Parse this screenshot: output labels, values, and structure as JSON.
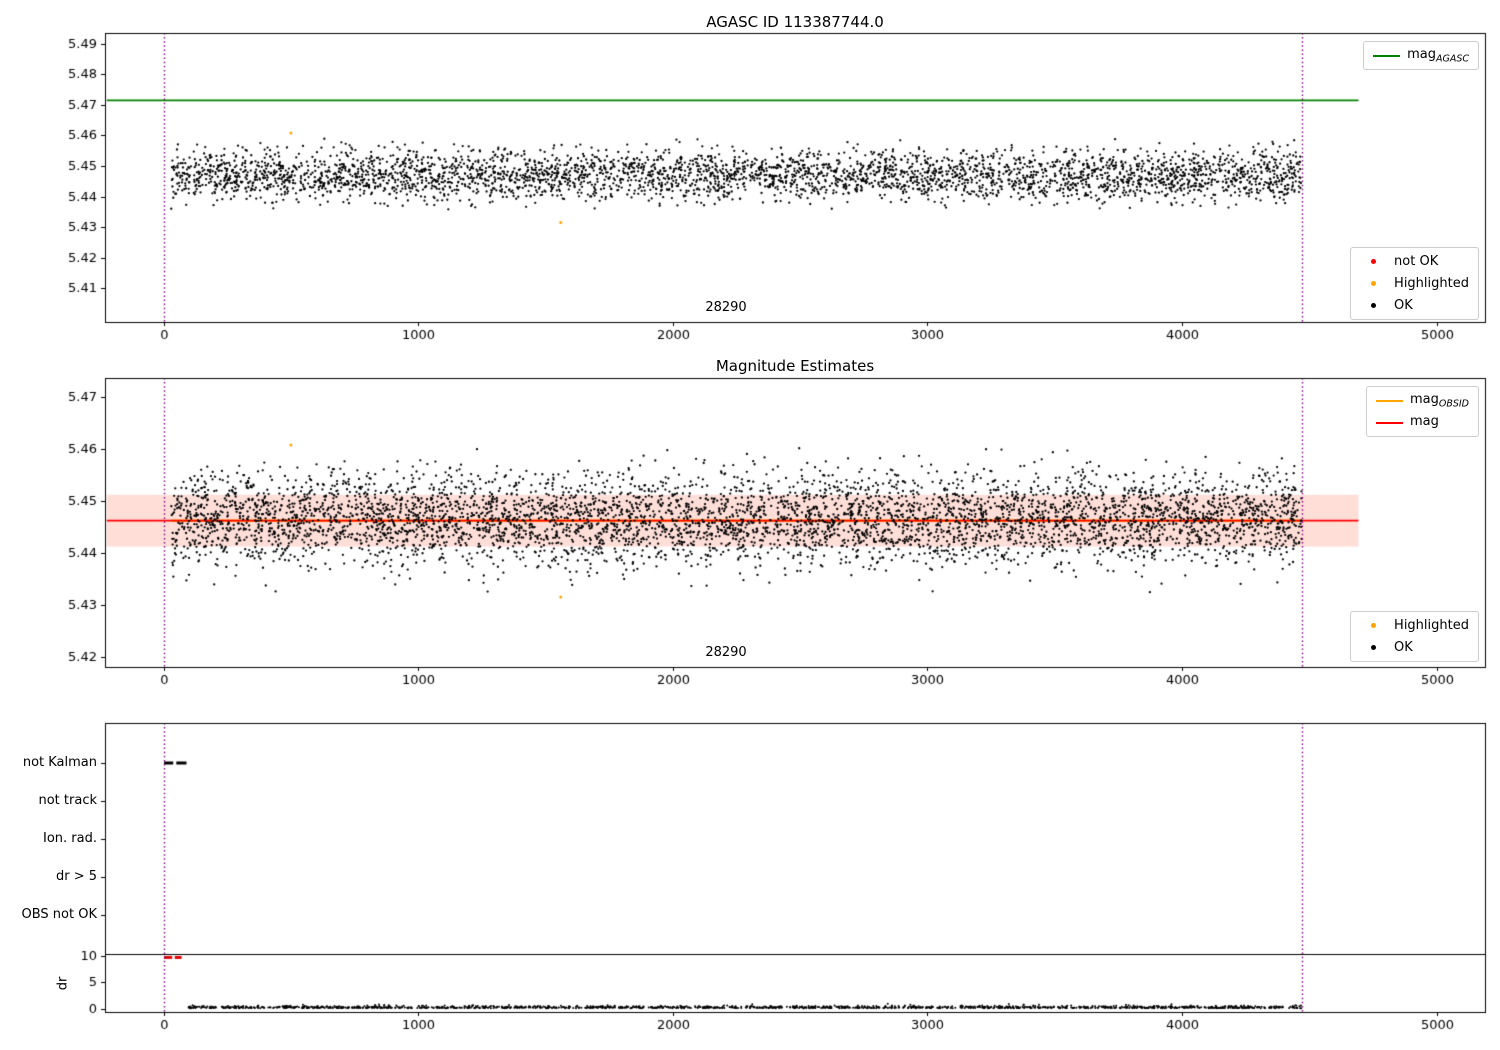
{
  "figure": {
    "background": "#ffffff"
  },
  "chart_data": [
    {
      "type": "scatter",
      "title": "AGASC ID 113387744.0",
      "annotation": {
        "text": "28290"
      },
      "xlim": [
        -230,
        5190
      ],
      "ylim": [
        5.399,
        5.4935
      ],
      "xticks": [
        0,
        1000,
        2000,
        3000,
        4000,
        5000
      ],
      "yticks": [
        5.41,
        5.42,
        5.43,
        5.44,
        5.45,
        5.46,
        5.47,
        5.48,
        5.49
      ],
      "hlines": [
        {
          "label_main": "mag",
          "label_sub": "AGASC",
          "y": 5.4715,
          "x0": -223,
          "x1": 4693,
          "color": "#008000",
          "width": 1.8
        }
      ],
      "band": null,
      "vlines": {
        "xs": [
          0,
          4470
        ],
        "color": "#800080",
        "style": "dotted"
      },
      "scatter_ok": {
        "label": "OK",
        "color": "#000000",
        "n": 3800,
        "x_min": 30,
        "x_max": 4470,
        "y_mean": 5.4468,
        "y_std": 0.0042,
        "y_clip": [
          5.4358,
          5.459
        ],
        "seed": 42,
        "dot_r": 1.15
      },
      "scatter_highlighted": {
        "label": "Highlighted",
        "color": "#ffa500",
        "points": [
          [
            500,
            5.4608
          ],
          [
            1560,
            5.4315
          ]
        ]
      },
      "legend_points": [
        {
          "label": "not OK",
          "color": "#ff0000"
        },
        {
          "label": "Highlighted",
          "color": "#ffa500"
        },
        {
          "label": "OK",
          "color": "#000000"
        }
      ]
    },
    {
      "type": "scatter",
      "title": "Magnitude Estimates",
      "annotation": {
        "text": "28290"
      },
      "xlim": [
        -230,
        5190
      ],
      "ylim": [
        5.418,
        5.4737
      ],
      "xticks": [
        0,
        1000,
        2000,
        3000,
        4000,
        5000
      ],
      "yticks": [
        5.42,
        5.43,
        5.44,
        5.45,
        5.46,
        5.47
      ],
      "hlines": [
        {
          "label_main": "mag",
          "label_sub": "OBSID",
          "y": 5.4462,
          "x0": 30,
          "x1": 4470,
          "color": "#ffa500",
          "width": 2.4
        },
        {
          "label_main": "mag",
          "label_sub": "",
          "y": 5.4462,
          "x0": -223,
          "x1": 4693,
          "color": "#ff0000",
          "width": 1.7
        }
      ],
      "band": {
        "y_bottom": 5.4412,
        "y_top": 5.4512,
        "x0": -223,
        "x1": 4693,
        "color": "rgba(255,70,40,0.18)"
      },
      "vlines": {
        "xs": [
          0,
          4470
        ],
        "color": "#800080",
        "style": "dotted"
      },
      "scatter_ok": {
        "label": "OK",
        "color": "#000000",
        "n": 5200,
        "x_min": 30,
        "x_max": 4470,
        "y_mean": 5.4465,
        "y_std": 0.0045,
        "y_clip": [
          5.4322,
          5.4605
        ],
        "seed": 123,
        "dot_r": 1.15
      },
      "scatter_highlighted": {
        "label": "Highlighted",
        "color": "#ffa500",
        "points": [
          [
            500,
            5.4608
          ],
          [
            1560,
            5.4315
          ]
        ]
      },
      "legend_points": [
        {
          "label": "Highlighted",
          "color": "#ffa500"
        },
        {
          "label": "OK",
          "color": "#000000"
        }
      ]
    },
    {
      "type": "flags",
      "categories": [
        "not Kalman",
        "not track",
        "Ion. rad.",
        "dr > 5",
        "OBS not OK"
      ],
      "xlim": [
        -230,
        5190
      ],
      "xticks": [
        0,
        1000,
        2000,
        3000,
        4000,
        5000
      ],
      "flag_segments": {
        "category_index": 0,
        "color": "#000000",
        "segments": [
          [
            2,
            38
          ],
          [
            50,
            90
          ]
        ]
      },
      "vlines": {
        "xs": [
          0,
          4470
        ],
        "color": "#800080",
        "style": "dotted"
      },
      "dr": {
        "ylabel": "dr",
        "ylim": [
          -0.6,
          10.35
        ],
        "yticks": [
          0,
          5,
          10
        ],
        "red_segments": {
          "y": 9.7,
          "color": "#e00000",
          "segments": [
            [
              2,
              34
            ],
            [
              44,
              71
            ]
          ]
        },
        "scatter": {
          "color": "#000000",
          "n": 1500,
          "x_min": 92,
          "x_max": 4470,
          "y_base": 0.12,
          "y_spread": 0.22,
          "y_max": 1.3,
          "seed": 11,
          "dot_r": 1.0
        }
      }
    }
  ]
}
